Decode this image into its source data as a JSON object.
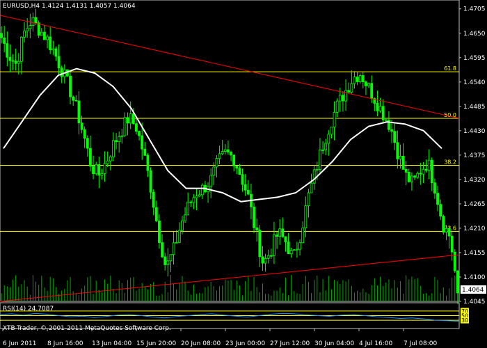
{
  "header": {
    "symbol": "EURUSD,H4",
    "ohlc": "1.4124 1.4131 1.4057 1.4064"
  },
  "rsi_panel": {
    "title": "RSI(14) 24.7087",
    "levels": [
      "70",
      "50",
      "30"
    ]
  },
  "copyright": "XTB-Trader, © 2001-2011 MetaQuotes Software Corp.",
  "colors": {
    "background": "#000000",
    "frame": "#c0c0c0",
    "candles": "#00ff00",
    "volume": "#00aa00",
    "moving_average": "#ffffff",
    "trendline": "#ff0000",
    "fib_lines": "#ffff00",
    "rsi_line": "#1e90ff",
    "current_price_box": "#ffffff"
  },
  "chart_data": {
    "type": "candlestick",
    "symbol": "EURUSD",
    "timeframe": "H4",
    "ylim": [
      1.4045,
      1.4725
    ],
    "y_ticks": [
      "1.4705",
      "1.4650",
      "1.4595",
      "1.4540",
      "1.4485",
      "1.4430",
      "1.4375",
      "1.4320",
      "1.4265",
      "1.4210",
      "1.4155",
      "1.4100",
      "1.4045"
    ],
    "current_price": "1.4064",
    "x_ticks": [
      "6 Jun 2011",
      "8 Jun 16:00",
      "13 Jun 04:00",
      "15 Jun 20:00",
      "20 Jun 08:00",
      "23 Jun 00:00",
      "27 Jun 12:00",
      "30 Jun 04:00",
      "4 Jul 16:00",
      "7 Jul 08:00"
    ],
    "fib_levels": [
      {
        "label": "61.8",
        "price": 1.4563
      },
      {
        "label": "50.0",
        "price": 1.4458
      },
      {
        "label": "38.2",
        "price": 1.4352
      },
      {
        "label": "23.6",
        "price": 1.4203
      }
    ],
    "close_path": [
      1.464,
      1.46,
      1.458,
      1.465,
      1.468,
      1.466,
      1.464,
      1.461,
      1.457,
      1.453,
      1.448,
      1.442,
      1.435,
      1.433,
      1.436,
      1.44,
      1.443,
      1.446,
      1.444,
      1.438,
      1.43,
      1.42,
      1.412,
      1.416,
      1.422,
      1.426,
      1.429,
      1.43,
      1.432,
      1.436,
      1.438,
      1.437,
      1.433,
      1.428,
      1.42,
      1.413,
      1.416,
      1.42,
      1.418,
      1.414,
      1.42,
      1.428,
      1.434,
      1.44,
      1.445,
      1.449,
      1.452,
      1.455,
      1.456,
      1.453,
      1.45,
      1.447,
      1.444,
      1.438,
      1.433,
      1.431,
      1.434,
      1.436,
      1.43,
      1.422,
      1.419,
      1.4064
    ],
    "ma_path": [
      1.439,
      1.445,
      1.451,
      1.4555,
      1.457,
      1.456,
      1.453,
      1.448,
      1.441,
      1.434,
      1.43,
      1.43,
      1.429,
      1.427,
      1.4275,
      1.428,
      1.429,
      1.432,
      1.436,
      1.441,
      1.444,
      1.445,
      1.4445,
      1.443,
      1.439
    ],
    "rsi_ylim": [
      0,
      100
    ],
    "rsi_path": [
      55,
      58,
      52,
      60,
      56,
      50,
      45,
      48,
      42,
      46,
      52,
      55,
      50,
      44,
      40,
      46,
      50,
      55,
      58,
      52,
      48,
      44,
      50,
      56,
      60,
      58,
      54,
      50,
      47,
      52,
      55,
      50,
      45,
      42,
      38,
      40,
      36,
      30,
      28,
      24.7
    ]
  }
}
